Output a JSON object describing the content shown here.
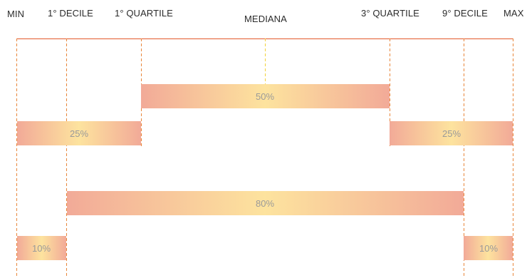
{
  "labels": {
    "min": "MIN",
    "decile_1": "1° DECILE",
    "quartile_1": "1° QUARTILE",
    "median": "MEDIANA",
    "quartile_3": "3° QUARTILE",
    "decile_9": "9° DECILE",
    "max": "MAX"
  },
  "bars": {
    "iqr": "50%",
    "lower_quartile": "25%",
    "upper_quartile": "25%",
    "inter_decile": "80%",
    "lower_decile": "10%",
    "upper_decile": "10%"
  },
  "colors": {
    "line": "#e3582a",
    "guide_orange": "#e8863a",
    "guide_yellow": "#f2d23c",
    "bar_edge": "#f2aa98",
    "bar_center": "#fde39e",
    "bar_text": "#9a9a9a"
  }
}
